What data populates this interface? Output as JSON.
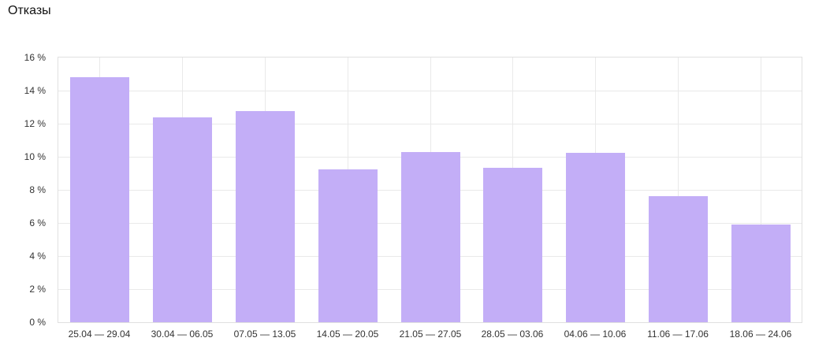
{
  "page": {
    "title": "Отказы"
  },
  "chart_data": {
    "type": "bar",
    "title": "Отказы",
    "categories": [
      "25.04 — 29.04",
      "30.04 — 06.05",
      "07.05 — 13.05",
      "14.05 — 20.05",
      "21.05 — 27.05",
      "28.05 — 03.06",
      "04.06 — 10.06",
      "11.06 — 17.06",
      "18.06 — 24.06"
    ],
    "values": [
      14.8,
      12.4,
      12.75,
      9.25,
      10.3,
      9.35,
      10.25,
      7.6,
      5.9
    ],
    "unit": "%",
    "xlabel": "",
    "ylabel": "",
    "ylim": [
      0,
      16
    ],
    "ytick_values": [
      0,
      2,
      4,
      6,
      8,
      10,
      12,
      14,
      16
    ],
    "ytick_labels": [
      "0 %",
      "2 %",
      "4 %",
      "6 %",
      "8 %",
      "10 %",
      "12 %",
      "14 %",
      "16 %"
    ],
    "grid": "horizontal and vertical gridlines, light gray",
    "legend": "none",
    "colors": {
      "bar": "#c3aef7",
      "gridline": "#e9e9e9",
      "axis_border": "#e0e0e0",
      "label_text": "#333333",
      "title_text": "#111111",
      "background": "#ffffff"
    }
  }
}
